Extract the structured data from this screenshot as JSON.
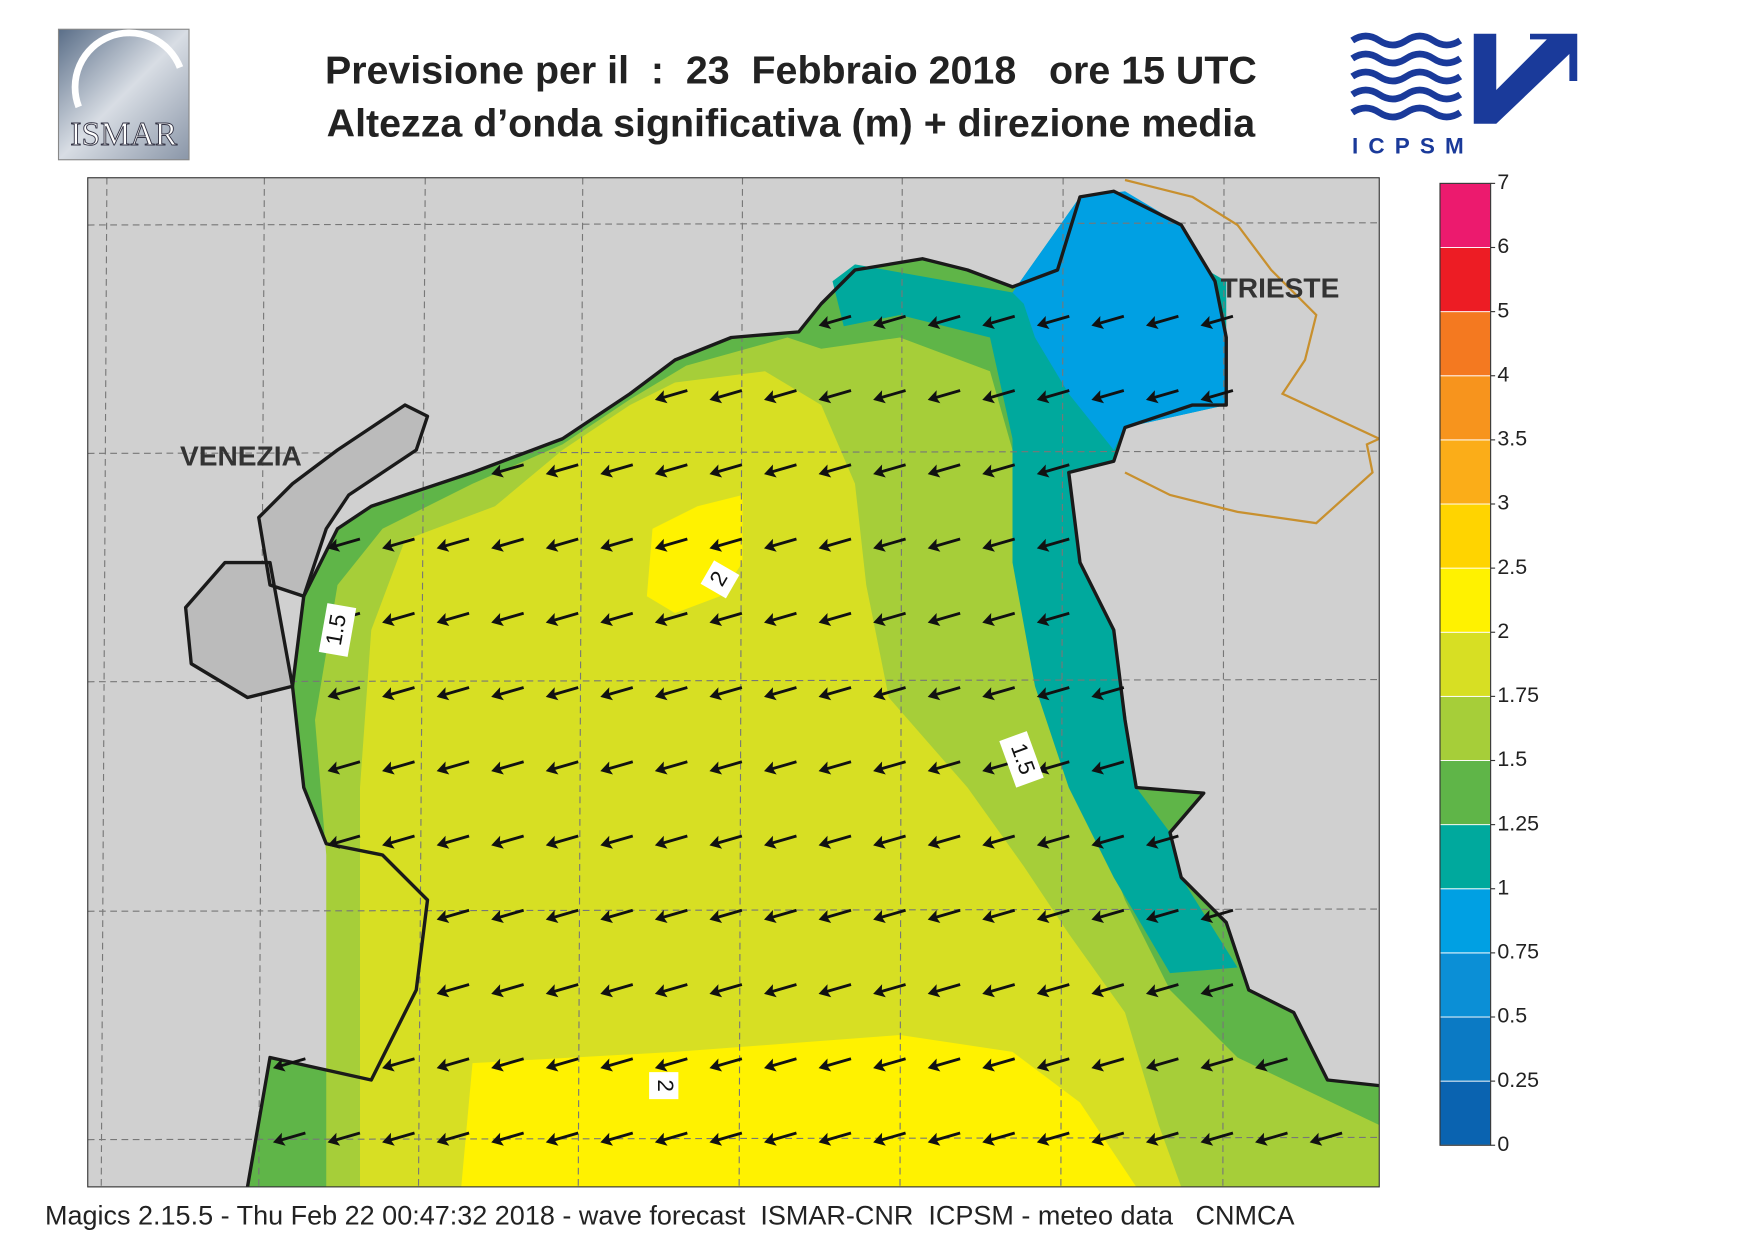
{
  "header": {
    "title": "Previsione per il  :  23  Febbraio 2018   ore 15 UTC",
    "subtitle": "Altezza d’onda significativa (m) + direzione media"
  },
  "logos": {
    "left": "ISMAR",
    "right": "ICPSM"
  },
  "map": {
    "places": [
      "VENEZIA",
      "TRIESTE"
    ],
    "contour_labels": [
      "2",
      "1.5",
      "1.5",
      "2"
    ]
  },
  "colorbar": {
    "ticks": [
      0,
      0.25,
      0.5,
      0.75,
      1,
      1.25,
      1.5,
      1.75,
      2,
      2.5,
      3,
      3.5,
      4,
      5,
      6,
      7
    ],
    "colors": [
      "#0a63b0",
      "#0b7ac4",
      "#0b8fd6",
      "#00a0e3",
      "#00a99d",
      "#5fb548",
      "#a6ce39",
      "#d7df23",
      "#fff200",
      "#ffd400",
      "#fbad18",
      "#f7941d",
      "#f47920",
      "#ed1c24",
      "#ec1a6e"
    ]
  },
  "footer": "Magics 2.15.5 - Thu Feb 22 00:47:32 2018 - wave forecast  ISMAR-CNR  ICPSM - meteo data   CNMCA"
}
